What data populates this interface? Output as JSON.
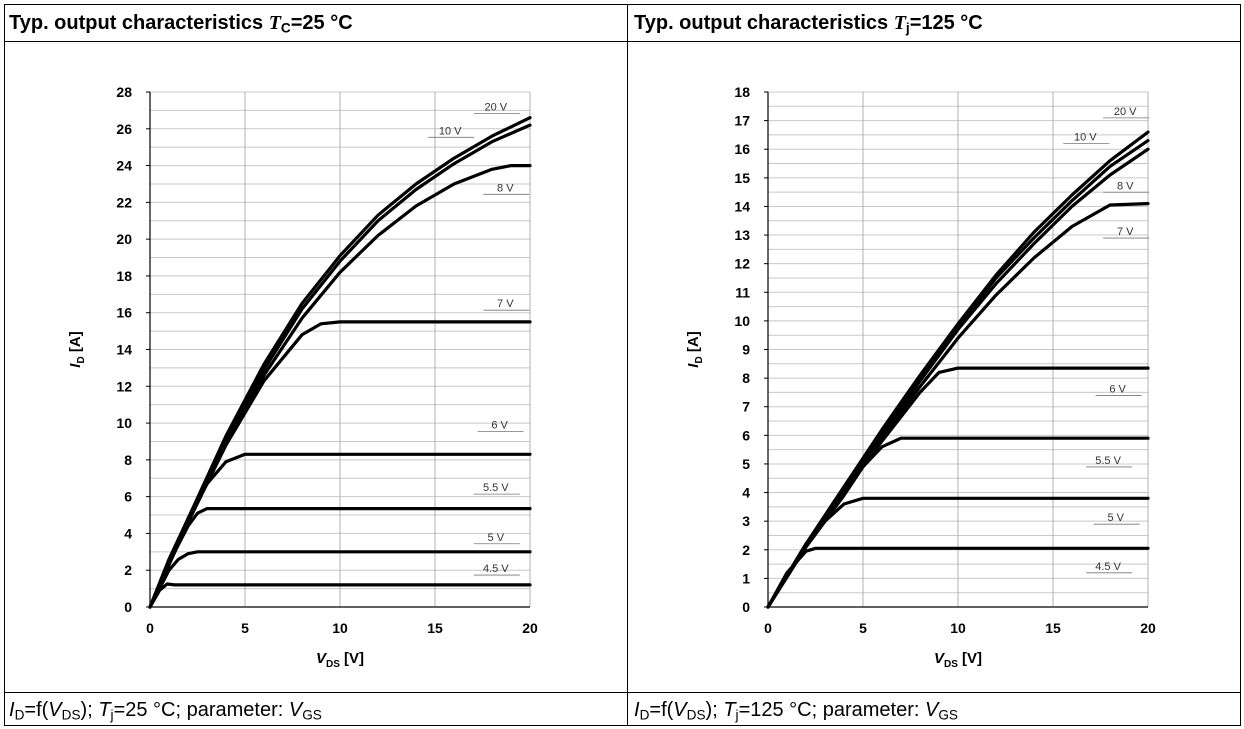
{
  "panels": [
    {
      "header": {
        "prefix": "Typ. output characteristics ",
        "symbol": "T",
        "subscript": "C",
        "suffix": "=25 °C"
      },
      "footer": {
        "i": "I",
        "i_sub": "D",
        "f_open": "=f(",
        "v": "V",
        "v_sub": "DS",
        "f_close": "); ",
        "t": "T",
        "t_sub": "j",
        "cond": "=25 °C; parameter: ",
        "p": "V",
        "p_sub": "GS"
      }
    },
    {
      "header": {
        "prefix": "Typ. output characteristics ",
        "symbol": "T",
        "subscript": "j",
        "suffix": "=125 °C"
      },
      "footer": {
        "i": "I",
        "i_sub": "D",
        "f_open": "=f(",
        "v": "V",
        "v_sub": "DS",
        "f_close": "); ",
        "t": "T",
        "t_sub": "j",
        "cond": "=125 °C; parameter: ",
        "p": "V",
        "p_sub": "GS"
      }
    }
  ],
  "chart_data": [
    {
      "type": "line",
      "title": "Typ. output characteristics TC=25 °C",
      "xlabel": {
        "main": "V",
        "sub": "DS",
        "unit": " [V]"
      },
      "ylabel": {
        "main": "I",
        "sub": "D",
        "unit": " [A]"
      },
      "xlim": [
        0,
        20
      ],
      "ylim": [
        0,
        28
      ],
      "xticks": [
        0,
        5,
        10,
        15,
        20
      ],
      "yticks": [
        0,
        2,
        4,
        6,
        8,
        10,
        12,
        14,
        16,
        18,
        20,
        22,
        24,
        26,
        28
      ],
      "grid": true,
      "series": [
        {
          "name": "20 V",
          "x": [
            0,
            2,
            4,
            6,
            8,
            10,
            12,
            14,
            16,
            18,
            20
          ],
          "y": [
            0,
            4.8,
            9.3,
            13.2,
            16.5,
            19.1,
            21.3,
            23.0,
            24.4,
            25.6,
            26.6
          ]
        },
        {
          "name": "10 V",
          "x": [
            0,
            2,
            4,
            6,
            8,
            10,
            12,
            14,
            16,
            18,
            20
          ],
          "y": [
            0,
            4.7,
            9.1,
            12.9,
            16.2,
            18.8,
            21.0,
            22.7,
            24.1,
            25.3,
            26.2
          ]
        },
        {
          "name": "8 V",
          "x": [
            0,
            2,
            4,
            6,
            8,
            10,
            12,
            14,
            16,
            18,
            19,
            20
          ],
          "y": [
            0,
            4.6,
            8.9,
            12.6,
            15.7,
            18.2,
            20.2,
            21.8,
            23.0,
            23.8,
            24.0,
            24.0
          ]
        },
        {
          "name": "7 V",
          "x": [
            0,
            2,
            4,
            6,
            8,
            9,
            10,
            20
          ],
          "y": [
            0,
            4.6,
            8.8,
            12.3,
            14.8,
            15.4,
            15.5,
            15.5
          ]
        },
        {
          "name": "6 V",
          "x": [
            0,
            1,
            2,
            3,
            4,
            5,
            20
          ],
          "y": [
            0,
            2.6,
            4.8,
            6.7,
            7.9,
            8.3,
            8.3
          ]
        },
        {
          "name": "5.5 V",
          "x": [
            0,
            1,
            2,
            2.5,
            3,
            20
          ],
          "y": [
            0,
            2.4,
            4.4,
            5.1,
            5.35,
            5.35
          ]
        },
        {
          "name": "5 V",
          "x": [
            0,
            1,
            1.5,
            2,
            2.5,
            20
          ],
          "y": [
            0,
            2.0,
            2.6,
            2.9,
            3.0,
            3.0
          ]
        },
        {
          "name": "4.5 V",
          "x": [
            0,
            0.5,
            0.9,
            1.3,
            2,
            20
          ],
          "y": [
            0,
            0.9,
            1.25,
            1.2,
            1.2,
            1.2
          ]
        }
      ],
      "labels": [
        {
          "text": "20 V",
          "x": 18.2,
          "y": 27.0
        },
        {
          "text": "10 V",
          "x": 15.8,
          "y": 25.7
        },
        {
          "text": "8 V",
          "x": 18.7,
          "y": 22.6
        },
        {
          "text": "7 V",
          "x": 18.7,
          "y": 16.3
        },
        {
          "text": "6 V",
          "x": 18.4,
          "y": 9.7
        },
        {
          "text": "5.5 V",
          "x": 18.2,
          "y": 6.3
        },
        {
          "text": "5 V",
          "x": 18.2,
          "y": 3.6
        },
        {
          "text": "4.5 V",
          "x": 18.2,
          "y": 1.9
        }
      ]
    },
    {
      "type": "line",
      "title": "Typ. output characteristics Tj=125 °C",
      "xlabel": {
        "main": "V",
        "sub": "DS",
        "unit": " [V]"
      },
      "ylabel": {
        "main": "I",
        "sub": "D",
        "unit": " [A]"
      },
      "xlim": [
        0,
        20
      ],
      "ylim": [
        0,
        18
      ],
      "xticks": [
        0,
        5,
        10,
        15,
        20
      ],
      "yticks": [
        0,
        1,
        2,
        3,
        4,
        5,
        6,
        7,
        8,
        9,
        10,
        11,
        12,
        13,
        14,
        15,
        16,
        17,
        18
      ],
      "grid": true,
      "series": [
        {
          "name": "20 V",
          "x": [
            0,
            2,
            4,
            6,
            8,
            10,
            12,
            14,
            16,
            18,
            20
          ],
          "y": [
            0,
            2.2,
            4.2,
            6.2,
            8.1,
            9.9,
            11.6,
            13.1,
            14.4,
            15.6,
            16.6
          ]
        },
        {
          "name": "10 V",
          "x": [
            0,
            2,
            4,
            6,
            8,
            10,
            12,
            14,
            16,
            18,
            20
          ],
          "y": [
            0,
            2.2,
            4.2,
            6.1,
            8.0,
            9.8,
            11.5,
            12.9,
            14.2,
            15.4,
            16.3
          ]
        },
        {
          "name": "8 V",
          "x": [
            0,
            2,
            4,
            6,
            8,
            10,
            12,
            14,
            16,
            18,
            20
          ],
          "y": [
            0,
            2.2,
            4.1,
            6.0,
            7.9,
            9.7,
            11.3,
            12.7,
            14.0,
            15.1,
            16.0
          ]
        },
        {
          "name": "7 V",
          "x": [
            0,
            2,
            4,
            6,
            8,
            10,
            12,
            14,
            16,
            18,
            20
          ],
          "y": [
            0,
            2.2,
            4.1,
            5.9,
            7.7,
            9.4,
            10.9,
            12.2,
            13.3,
            14.05,
            14.1
          ]
        },
        {
          "name": "6 V",
          "x": [
            0,
            2,
            4,
            6,
            8,
            9,
            10,
            20
          ],
          "y": [
            0,
            2.2,
            4.0,
            5.8,
            7.5,
            8.2,
            8.35,
            8.35
          ]
        },
        {
          "name": "5.5 V",
          "x": [
            0,
            2,
            4,
            5,
            6,
            7,
            20
          ],
          "y": [
            0,
            2.1,
            3.9,
            4.9,
            5.6,
            5.9,
            5.9
          ]
        },
        {
          "name": "5 V",
          "x": [
            0,
            2,
            3,
            4,
            5,
            20
          ],
          "y": [
            0,
            2.1,
            3.0,
            3.6,
            3.8,
            3.8
          ]
        },
        {
          "name": "4.5 V",
          "x": [
            0,
            1,
            2,
            2.5,
            20
          ],
          "y": [
            0,
            1.2,
            1.95,
            2.05,
            2.05
          ]
        }
      ],
      "labels": [
        {
          "text": "20 V",
          "x": 18.8,
          "y": 17.2
        },
        {
          "text": "10 V",
          "x": 16.7,
          "y": 16.3
        },
        {
          "text": "8 V",
          "x": 18.8,
          "y": 14.6
        },
        {
          "text": "7 V",
          "x": 18.8,
          "y": 13.0
        },
        {
          "text": "6 V",
          "x": 18.4,
          "y": 7.5
        },
        {
          "text": "5.5 V",
          "x": 17.9,
          "y": 5.0
        },
        {
          "text": "5 V",
          "x": 18.3,
          "y": 3.0
        },
        {
          "text": "4.5 V",
          "x": 17.9,
          "y": 1.3
        }
      ]
    }
  ]
}
